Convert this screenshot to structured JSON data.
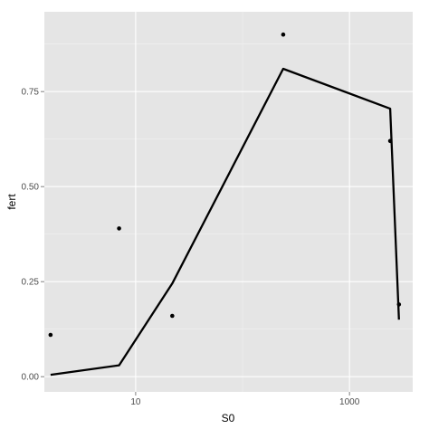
{
  "chart_data": {
    "type": "line",
    "xlabel": "S0",
    "ylabel": "fert",
    "x_scale": "log10",
    "xlim": [
      1.4,
      3900
    ],
    "ylim": [
      -0.04,
      0.96
    ],
    "x_major_ticks": [
      {
        "value": 10,
        "label": "10"
      },
      {
        "value": 1000,
        "label": "1000"
      }
    ],
    "y_major_ticks": [
      {
        "value": 0,
        "label": "0.00"
      },
      {
        "value": 0.25,
        "label": "0.25"
      },
      {
        "value": 0.5,
        "label": "0.50"
      },
      {
        "value": 0.75,
        "label": "0.75"
      }
    ],
    "grid": true,
    "legend": "none",
    "colors": {
      "panel": "#e5e5e5",
      "grid_major": "#ffffff",
      "grid_minor": "#f2f2f2",
      "points": "#000000",
      "line": "#000000"
    },
    "series": [
      {
        "kind": "points",
        "x": [
          1.6,
          7,
          22,
          240,
          2400,
          2900
        ],
        "y": [
          0.11,
          0.39,
          0.16,
          0.9,
          0.62,
          0.19
        ]
      },
      {
        "kind": "line",
        "x": [
          1.6,
          7,
          22,
          240,
          2400,
          2900
        ],
        "y": [
          0.005,
          0.03,
          0.245,
          0.81,
          0.705,
          0.15
        ]
      }
    ]
  }
}
